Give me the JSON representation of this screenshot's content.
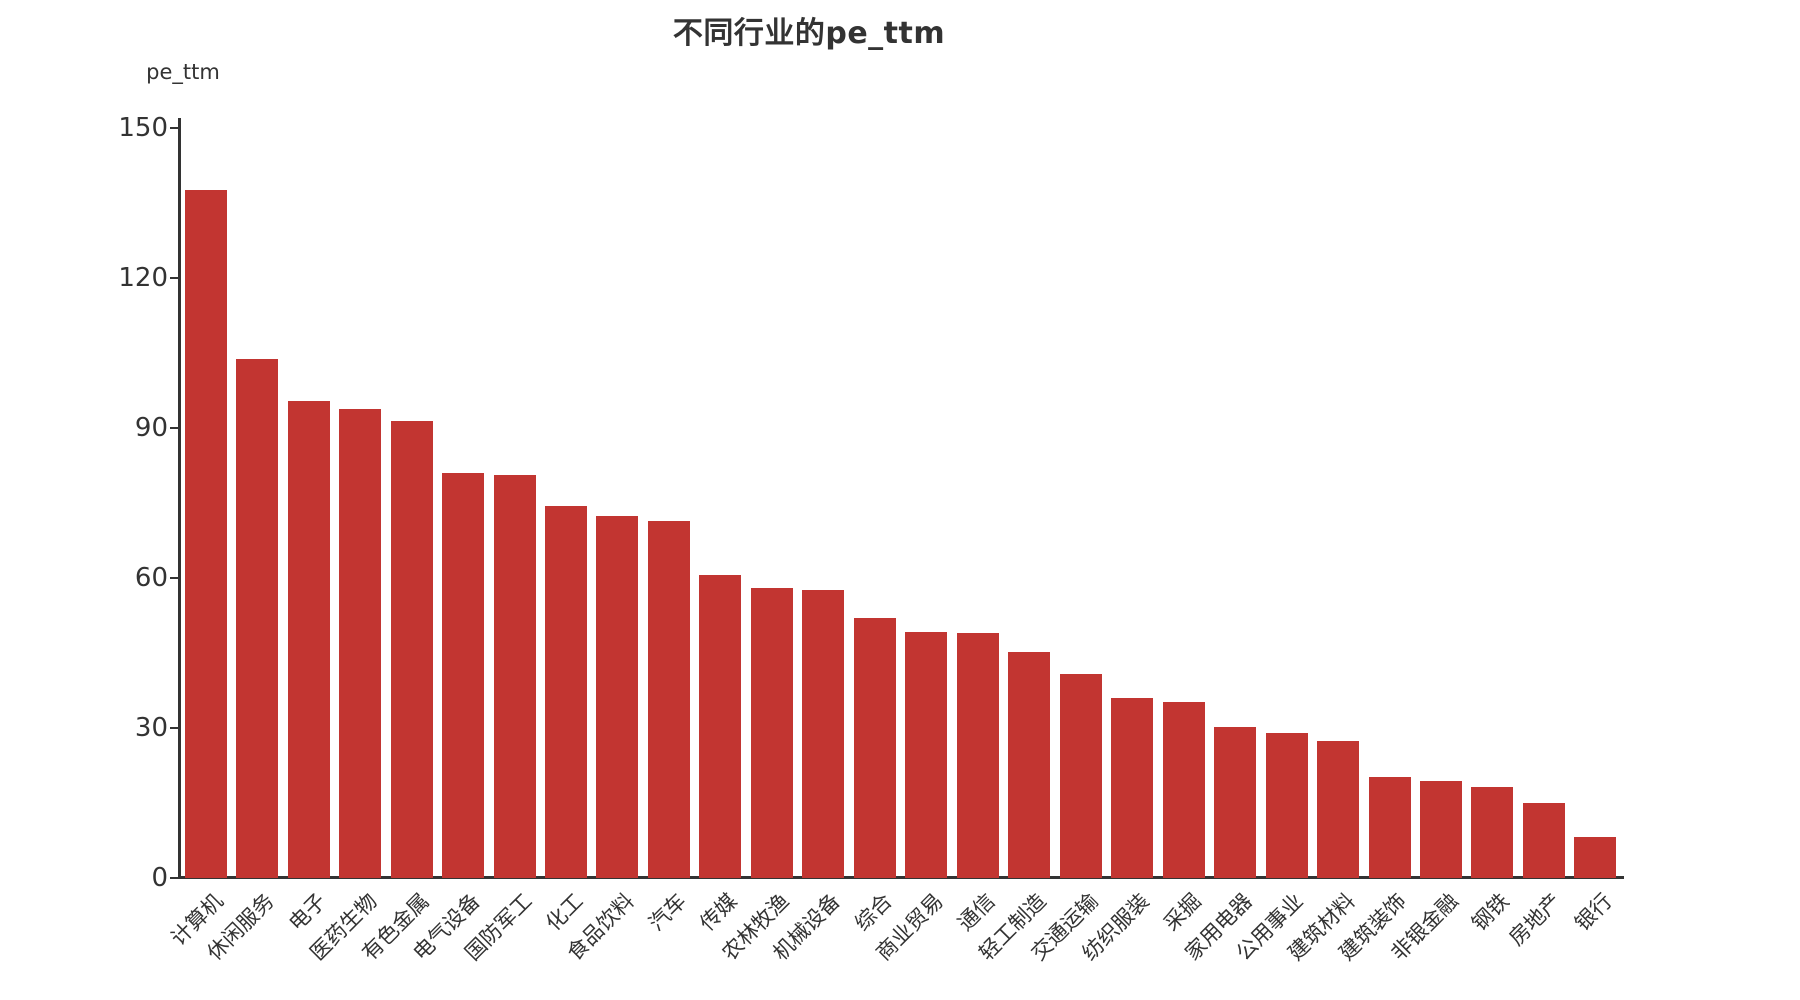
{
  "title": "不同行业的pe_ttm",
  "y_axis": {
    "name": "pe_ttm",
    "tick_labels": [
      "0",
      "30",
      "60",
      "90",
      "120",
      "150"
    ]
  },
  "colors": {
    "bar": "#c23531",
    "axis": "#333333",
    "text": "#333333",
    "background": "#ffffff"
  },
  "chart_data": {
    "type": "bar",
    "title": "不同行业的pe_ttm",
    "xlabel": "",
    "ylabel": "pe_ttm",
    "ylim": [
      0,
      150
    ],
    "yticks": [
      0,
      30,
      60,
      90,
      120,
      150
    ],
    "grid": false,
    "legend": false,
    "bar_color": "#c23531",
    "categories": [
      "计算机",
      "休闲服务",
      "电子",
      "医药生物",
      "有色金属",
      "电气设备",
      "国防军工",
      "化工",
      "食品饮料",
      "汽车",
      "传媒",
      "农林牧渔",
      "机械设备",
      "综合",
      "商业贸易",
      "通信",
      "轻工制造",
      "交通运输",
      "纺织服装",
      "采掘",
      "家用电器",
      "公用事业",
      "建筑材料",
      "建筑装饰",
      "非银金融",
      "钢铁",
      "房地产",
      "银行"
    ],
    "values": [
      137.6,
      103.8,
      95.4,
      93.8,
      91.4,
      81.0,
      80.6,
      74.4,
      72.4,
      71.4,
      60.6,
      58.0,
      57.6,
      52.0,
      49.2,
      49.0,
      45.2,
      40.8,
      36.0,
      35.2,
      30.2,
      29.0,
      27.4,
      20.2,
      19.4,
      18.2,
      15.0,
      8.2
    ]
  }
}
